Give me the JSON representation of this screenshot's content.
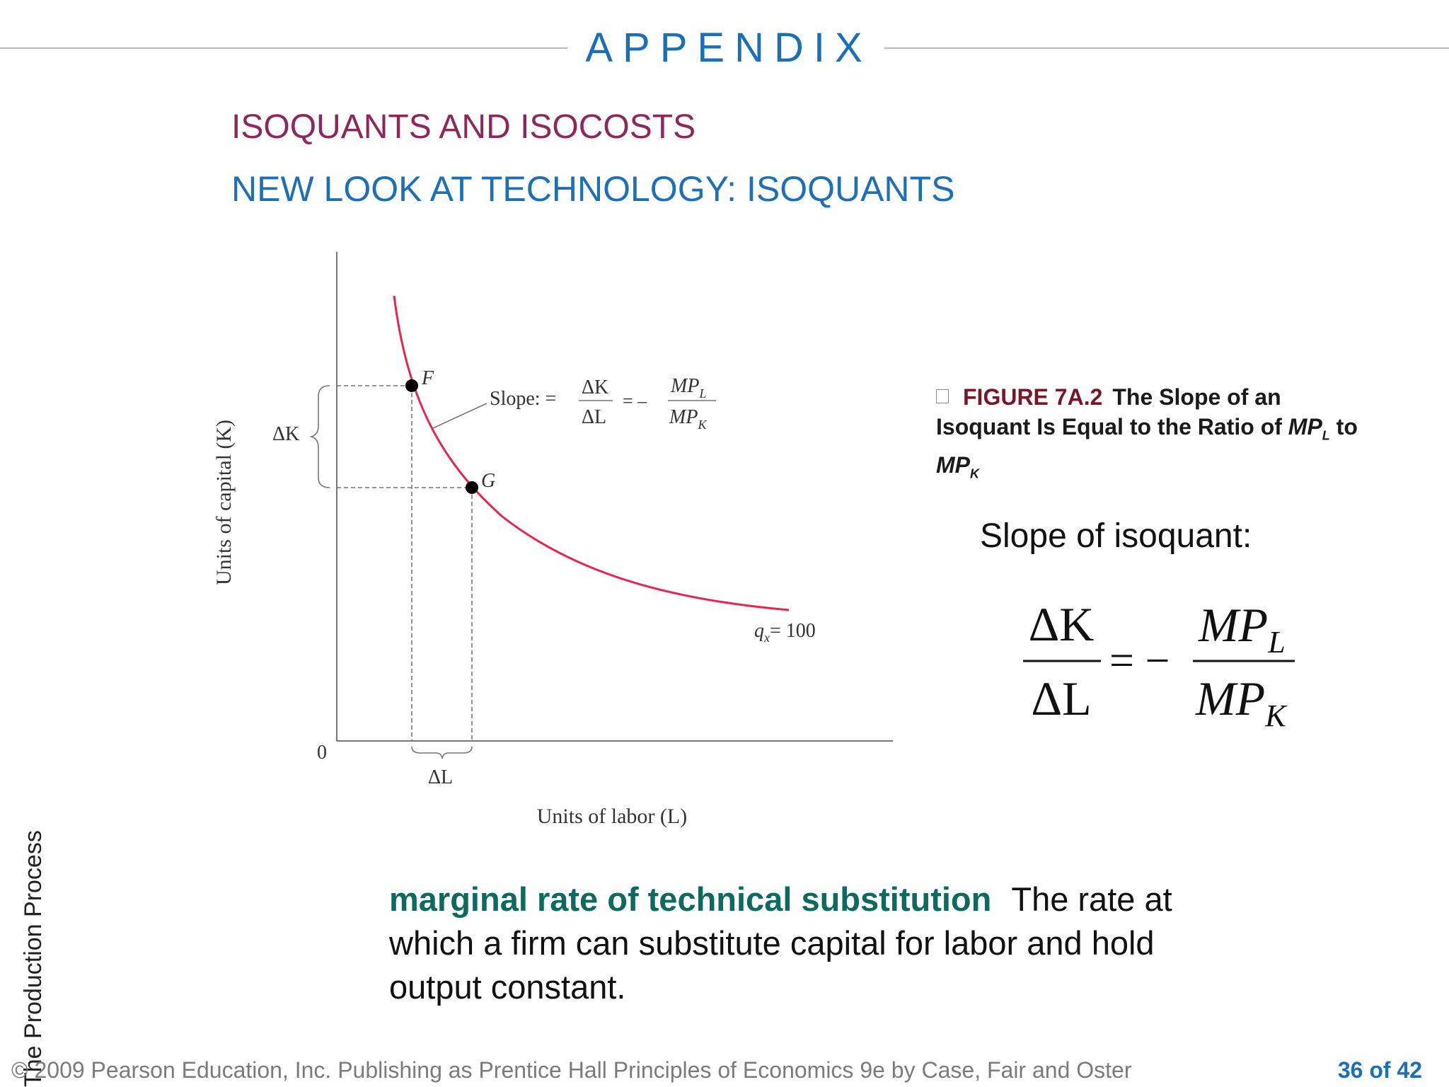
{
  "header": {
    "title": "APPENDIX"
  },
  "section_title": "ISOQUANTS AND ISOCOSTS",
  "subtitle": "NEW LOOK AT TECHNOLOGY: ISOQUANTS",
  "graph": {
    "y_axis_label": "Units of capital (K)",
    "x_axis_label": "Units of labor (L)",
    "origin_label": "0",
    "delta_k": "ΔK",
    "delta_l": "ΔL",
    "point_f": "F",
    "point_g": "G",
    "slope_label": "Slope: =",
    "slope_num": "ΔK",
    "slope_den": "ΔL",
    "equals_minus": "= –",
    "mpl": "MP",
    "mpl_sub": "L",
    "mpk": "MP",
    "mpk_sub": "K",
    "curve_q": "q",
    "curve_q_sub": "x",
    "curve_value": "= 100",
    "curve_color": "#e8264d"
  },
  "caption": {
    "figure": "FIGURE 7A.2",
    "text1": "The Slope of an Isoquant Is Equal to the Ratio of",
    "mp": "MP",
    "sub_l": "L",
    "to": "to",
    "sub_k": "K"
  },
  "slope_heading": "Slope of isoquant:",
  "formula": {
    "num_left": "ΔK",
    "den_left": "ΔL",
    "eq": "= −",
    "num_right": "MP",
    "num_right_sub": "L",
    "den_right": "MP",
    "den_right_sub": "K"
  },
  "definition": {
    "term": "marginal rate of technical substitution",
    "text": "The rate at which a firm can substitute capital for labor and hold output constant."
  },
  "side_text": "The Production Process",
  "footer": {
    "copyright": "© 2009 Pearson Education, Inc. Publishing as Prentice Hall   Principles of Economics 9e by Case, Fair and Oster",
    "page": "36 of 42"
  }
}
